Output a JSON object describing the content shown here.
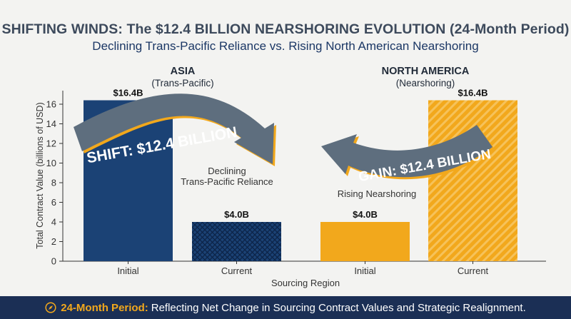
{
  "header": {
    "title": "SHIFTING WINDS:  The $12.4 BILLION NEARSHORING EVOLUTION (24-Month Period)",
    "subtitle": "Declining Trans-Pacific Reliance vs. Rising North American Nearshoring"
  },
  "groups": {
    "asia": {
      "name": "ASIA",
      "sub": "(Trans-Pacific)"
    },
    "north_america": {
      "name": "NORTH AMERICA",
      "sub": "(Nearshoring)"
    }
  },
  "annotations": {
    "shift": "SHIFT: $12.4 BILLION",
    "gain": "GAIN: $12.4 BILLION",
    "declining_line1": "Declining",
    "declining_line2": "Trans-Pacific Reliance",
    "rising": "Rising Nearshoring"
  },
  "footer": {
    "icon": "compass-icon",
    "strong": "24-Month Period:",
    "text": "Reflecting Net Change in Sourcing Contract Values and Strategic Realignment."
  },
  "colors": {
    "navy": "#1b4275",
    "orange": "#f2a81c",
    "arrow_gray": "#5e6e7e",
    "footer_bg": "#1b2f55"
  },
  "chart_data": {
    "type": "bar",
    "categories": [
      "Initial",
      "Current",
      "Initial",
      "Current"
    ],
    "groups": [
      "ASIA",
      "ASIA",
      "NORTH AMERICA",
      "NORTH AMERICA"
    ],
    "values": [
      16.4,
      4.0,
      4.0,
      16.4
    ],
    "value_labels": [
      "$16.4B",
      "$4.0B",
      "$4.0B",
      "$16.4B"
    ],
    "colors": [
      "#1b4275",
      "#1b4275",
      "#f2a81c",
      "#f2a81c"
    ],
    "patterns": [
      "solid",
      "crosshatch",
      "solid",
      "diagonal-stripes"
    ],
    "xlabel": "Sourcing Region",
    "ylabel": "Total Contract Value (billions of USD)",
    "ylim": [
      0,
      18
    ],
    "yticks": [
      0,
      2,
      4,
      6,
      8,
      10,
      12,
      14,
      16
    ],
    "grid": false,
    "legend": "none"
  }
}
